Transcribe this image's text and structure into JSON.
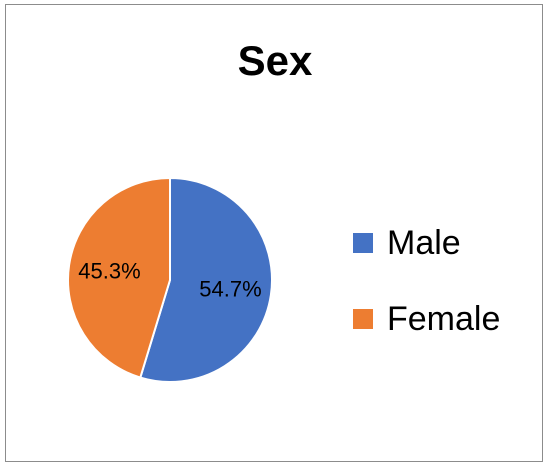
{
  "chart_data": {
    "type": "pie",
    "title": "Sex",
    "categories": [
      "Male",
      "Female"
    ],
    "values": [
      54.7,
      45.3
    ],
    "labels": [
      "54.7%",
      "45.3%"
    ],
    "colors": [
      "#4472c4",
      "#ed7d31"
    ],
    "legend_position": "right"
  }
}
